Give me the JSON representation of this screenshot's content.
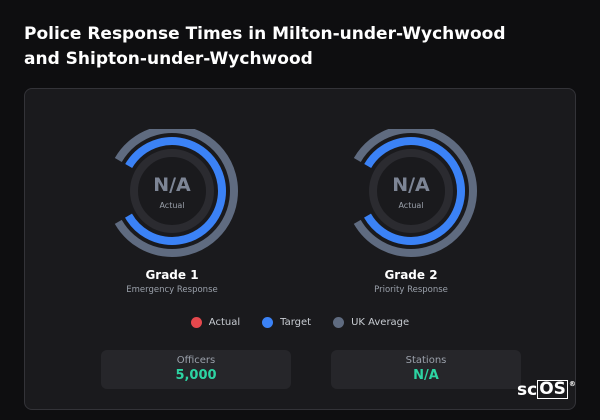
{
  "header": {
    "title": "Police Response Times in Milton-under-Wychwood and Shipton-under-Wychwood"
  },
  "gauges": [
    {
      "value": "N/A",
      "caption": "Actual",
      "label": "Grade 1",
      "sublabel": "Emergency Response"
    },
    {
      "value": "N/A",
      "caption": "Actual",
      "label": "Grade 2",
      "sublabel": "Priority Response"
    }
  ],
  "legend": [
    {
      "label": "Actual",
      "color": "#e5484d"
    },
    {
      "label": "Target",
      "color": "#3b82f6"
    },
    {
      "label": "UK Average",
      "color": "#5f6b80"
    }
  ],
  "stats": [
    {
      "label": "Officers",
      "value": "5,000"
    },
    {
      "label": "Stations",
      "value": "N/A"
    }
  ],
  "logo": {
    "prefix": "sc",
    "mark": "OS",
    "symbol": "®"
  }
}
